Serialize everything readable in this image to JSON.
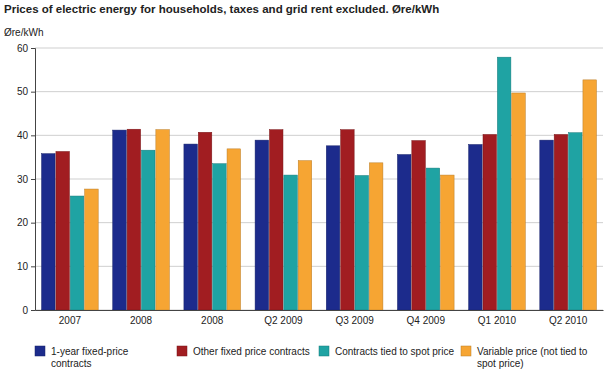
{
  "chart_data": {
    "type": "bar",
    "title": "Prices of electric energy for households, taxes and grid rent excluded. Øre/kWh",
    "y_label": "Øre/kWh",
    "categories": [
      "2007",
      "2008",
      "2008",
      "Q2 2009",
      "Q3 2009",
      "Q4 2009",
      "Q1 2010",
      "Q2 2010"
    ],
    "series": [
      {
        "name": "1-year fixed-price contracts",
        "color": "#1c2b8c",
        "values": [
          35.8,
          41.2,
          38.0,
          38.9,
          37.6,
          35.6,
          37.9,
          38.9
        ]
      },
      {
        "name": "Other fixed price contracts",
        "color": "#a11d21",
        "values": [
          36.3,
          41.4,
          40.7,
          41.3,
          41.3,
          38.8,
          40.2,
          40.2
        ]
      },
      {
        "name": "Contracts tied to spot price",
        "color": "#1fa3a3",
        "values": [
          26.1,
          36.6,
          33.5,
          30.9,
          30.8,
          32.5,
          57.9,
          40.6
        ]
      },
      {
        "name": "Variable price (not tied to spot price)",
        "color": "#f6a533",
        "values": [
          27.7,
          41.3,
          36.9,
          34.2,
          33.7,
          30.9,
          49.7,
          52.7
        ]
      }
    ],
    "ylim": [
      0,
      60
    ],
    "yticks": [
      0,
      10,
      20,
      30,
      40,
      50,
      60
    ],
    "grid": true,
    "legend": "bottom"
  }
}
